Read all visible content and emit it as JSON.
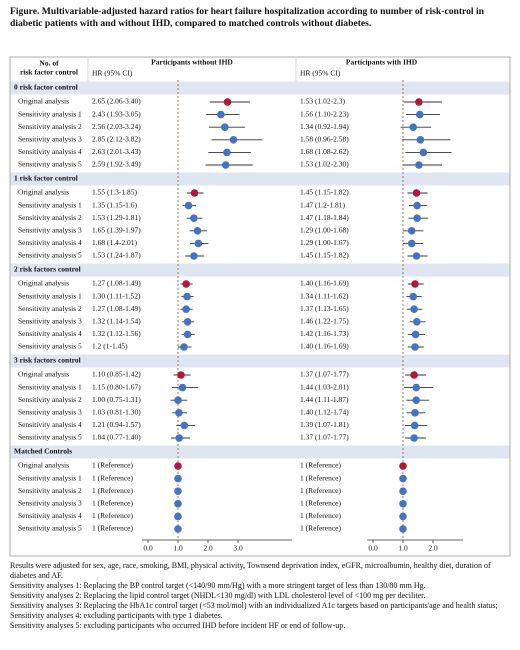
{
  "chart_data": {
    "type": "forest",
    "title": "Figure. Multivariable-adjusted hazard ratios for heart failure hospitalization according to number of risk-control in diabetic patients with and without IHD, compared to matched controls without diabetes.",
    "row_header": [
      "No. of",
      "risk factor control"
    ],
    "groups": [
      {
        "name": "0 risk factor control",
        "rows": [
          "Original analysis",
          "Sensitivity analysis 1",
          "Sensitivity analysis 2",
          "Sensitivity analysis 3",
          "Sensitivity analysis 4",
          "Sensitivity analysis 5"
        ]
      },
      {
        "name": "1 risk factor control",
        "rows": [
          "Original analysis",
          "Sensitivity analysis 1",
          "Sensitivity analysis 2",
          "Sensitivity analysis 3",
          "Sensitivity analysis 4",
          "Sensitivity analysis 5"
        ]
      },
      {
        "name": "2 risk factors control",
        "rows": [
          "Original analysis",
          "Sensitivity analysis 1",
          "Sensitivity analysis 2",
          "Sensitivity analysis 3",
          "Sensitivity analysis 4",
          "Sensitivity analysis 5"
        ]
      },
      {
        "name": "3 risk factors control",
        "rows": [
          "Original analysis",
          "Sensitivity analysis 1",
          "Sensitivity analysis 2",
          "Sensitivity analysis 3",
          "Sensitivity analysis 4",
          "Sensitivity analysis 5"
        ]
      },
      {
        "name": "Matched Controls",
        "rows": [
          "Original analysis",
          "Sensitivity analysis 1",
          "Sensitivity analysis 2",
          "Sensitivity analysis 3",
          "Sensitivity analysis 4",
          "Sensitivity analysis 5"
        ]
      }
    ],
    "panels": [
      {
        "name": "Participants without IHD",
        "subheader": "HR (95% CI)",
        "color": "#4472c4",
        "highlight_color": "#b0173a",
        "reference": 1,
        "xlim": [
          -0.2,
          4.8
        ],
        "xticks": [
          {
            "value": 0,
            "label": "0.0"
          },
          {
            "value": 1,
            "label": "1.0"
          },
          {
            "value": 2,
            "label": "2.0"
          },
          {
            "value": 3,
            "label": "3.0"
          }
        ],
        "groups": [
          {
            "values": [
              2.65,
              2.43,
              2.56,
              2.85,
              2.63,
              2.59
            ],
            "lower": [
              2.06,
              1.93,
              2.03,
              2.12,
              2.01,
              1.92
            ],
            "upper": [
              3.4,
              3.05,
              3.24,
              3.82,
              3.43,
              3.49
            ],
            "value_labels": [
              "2.65 (2.06-3.40)",
              "2.43 (1.93-3.05)",
              "2.56 (2.03-3.24)",
              "2.85 (2.12-3.82)",
              "2.63 (2.01-3.43)",
              "2.59 (1.92-3.49)"
            ]
          },
          {
            "values": [
              1.55,
              1.35,
              1.53,
              1.65,
              1.68,
              1.53
            ],
            "lower": [
              1.3,
              1.15,
              1.29,
              1.39,
              1.4,
              1.24
            ],
            "upper": [
              1.85,
              1.6,
              1.81,
              1.97,
              2.01,
              1.87
            ],
            "value_labels": [
              "1.55 (1.3-1.85)",
              "1.35 (1.15-1.6)",
              "1.53 (1.29-1.81)",
              "1.65 (1.39-1.97)",
              "1.68 (1.4-2.01)",
              "1.53 (1.24-1.87)"
            ]
          },
          {
            "values": [
              1.27,
              1.3,
              1.27,
              1.32,
              1.32,
              1.2
            ],
            "lower": [
              1.08,
              1.11,
              1.08,
              1.14,
              1.12,
              1
            ],
            "upper": [
              1.49,
              1.52,
              1.49,
              1.54,
              1.56,
              1.45
            ],
            "value_labels": [
              "1.27 (1.08-1.49)",
              "1.30 (1.11-1.52)",
              "1.27 (1.08-1.49)",
              "1.32 (1.14-1.54)",
              "1.32 (1.12-1.56)",
              "1.2 (1-1.45)"
            ]
          },
          {
            "values": [
              1.1,
              1.15,
              1.0,
              1.03,
              1.21,
              1.04
            ],
            "lower": [
              0.85,
              0.8,
              0.75,
              0.81,
              0.94,
              0.77
            ],
            "upper": [
              1.42,
              1.67,
              1.31,
              1.3,
              1.57,
              1.4
            ],
            "value_labels": [
              "1.10 (0.85-1.42)",
              "1.15 (0.80-1.67)",
              "1.00 (0.75-1.31)",
              "1.03 (0.81-1.30)",
              "1.21 (0.94-1.57)",
              "1.04 (0.77-1.40)"
            ]
          },
          {
            "values": [
              1,
              1,
              1,
              1,
              1,
              1
            ],
            "lower": [
              null,
              null,
              null,
              null,
              null,
              null
            ],
            "upper": [
              null,
              null,
              null,
              null,
              null,
              null
            ],
            "value_labels": [
              "1 (Reference)",
              "1 (Reference)",
              "1 (Reference)",
              "1 (Reference)",
              "1 (Reference)",
              "1 (Reference)"
            ]
          }
        ]
      },
      {
        "name": "Participants with IHD",
        "subheader": "HR (95% CI)",
        "color": "#4472c4",
        "highlight_color": "#b0173a",
        "reference": 1,
        "xlim": [
          -0.2,
          3.0
        ],
        "xticks": [
          {
            "value": 0,
            "label": "0.0"
          },
          {
            "value": 1,
            "label": "1.0"
          },
          {
            "value": 2,
            "label": "2.0"
          }
        ],
        "groups": [
          {
            "values": [
              1.53,
              1.56,
              1.34,
              1.58,
              1.68,
              1.53
            ],
            "lower": [
              1.02,
              1.1,
              0.92,
              0.96,
              1.08,
              1.02
            ],
            "upper": [
              2.3,
              2.23,
              1.94,
              2.58,
              2.62,
              2.3
            ],
            "value_labels": [
              "1.53 (1.02-2.3)",
              "1.56 (1.10-2.23)",
              "1.34 (0.92-1.94)",
              "1.58 (0.96-2.58)",
              "1.68 (1.08-2.62)",
              "1.53 (1.02-2.30)"
            ]
          },
          {
            "values": [
              1.45,
              1.47,
              1.47,
              1.29,
              1.29,
              1.45
            ],
            "lower": [
              1.15,
              1.2,
              1.18,
              1.0,
              1.0,
              1.15
            ],
            "upper": [
              1.82,
              1.81,
              1.84,
              1.68,
              1.67,
              1.82
            ],
            "value_labels": [
              "1.45 (1.15-1.82)",
              "1.47 (1.2-1.81)",
              "1.47 (1.18-1.84)",
              "1.29 (1.00-1.68)",
              "1.29 (1.00-1.67)",
              "1.45 (1.15-1.82)"
            ]
          },
          {
            "values": [
              1.4,
              1.34,
              1.37,
              1.46,
              1.42,
              1.4
            ],
            "lower": [
              1.16,
              1.11,
              1.13,
              1.22,
              1.16,
              1.16
            ],
            "upper": [
              1.69,
              1.62,
              1.65,
              1.75,
              1.73,
              1.69
            ],
            "value_labels": [
              "1.40 (1.16-1.69)",
              "1.34 (1.11-1.62)",
              "1.37 (1.13-1.65)",
              "1.46 (1.22-1.75)",
              "1.42 (1.16-1.73)",
              "1.40 (1.16-1.69)"
            ]
          },
          {
            "values": [
              1.37,
              1.44,
              1.44,
              1.4,
              1.39,
              1.37
            ],
            "lower": [
              1.07,
              1.03,
              1.11,
              1.12,
              1.07,
              1.07
            ],
            "upper": [
              1.77,
              2.01,
              1.87,
              1.74,
              1.81,
              1.77
            ],
            "value_labels": [
              "1.37 (1.07-1.77)",
              "1.44 (1.03-2.01)",
              "1.44 (1.11-1.87)",
              "1.40 (1.12-1.74)",
              "1.39 (1.07-1.81)",
              "1.37 (1.07-1.77)"
            ]
          },
          {
            "values": [
              1,
              1,
              1,
              1,
              1,
              1
            ],
            "lower": [
              null,
              null,
              null,
              null,
              null,
              null
            ],
            "upper": [
              null,
              null,
              null,
              null,
              null,
              null
            ],
            "value_labels": [
              "1 (Reference)",
              "1 (Reference)",
              "1 (Reference)",
              "1 (Reference)",
              "1 (Reference)",
              "1 (Reference)"
            ]
          }
        ]
      }
    ],
    "notes": [
      "Results were adjusted for sex, age, race, smoking, BMI, physical activity, Townsend deprivation index, eGFR, microalbumin, healthy diet, duration of diabetes and AF.",
      "Sensitivity analyses 1: Replacing the BP control target (<140/90 mm/Hg) with a more stringent target of less than 130/80 mm Hg.",
      "Sensitivity analyses 2: Replacing the lipid control target (NHDL<130 mg/dl) with LDL cholesterol level of <100 mg per deciliter.",
      "Sensitivity analyses 3: Replacing the HbA1c control target (<53 mol/mol) with an individualized A1c targets based on participants'age and health status;",
      "Sensitivity analyses 4: excluding participants with type 1 diabetes.",
      "Sensitivity analyses 5: excluding participants who occurred IHD before incident HF or end of follow-up."
    ]
  }
}
